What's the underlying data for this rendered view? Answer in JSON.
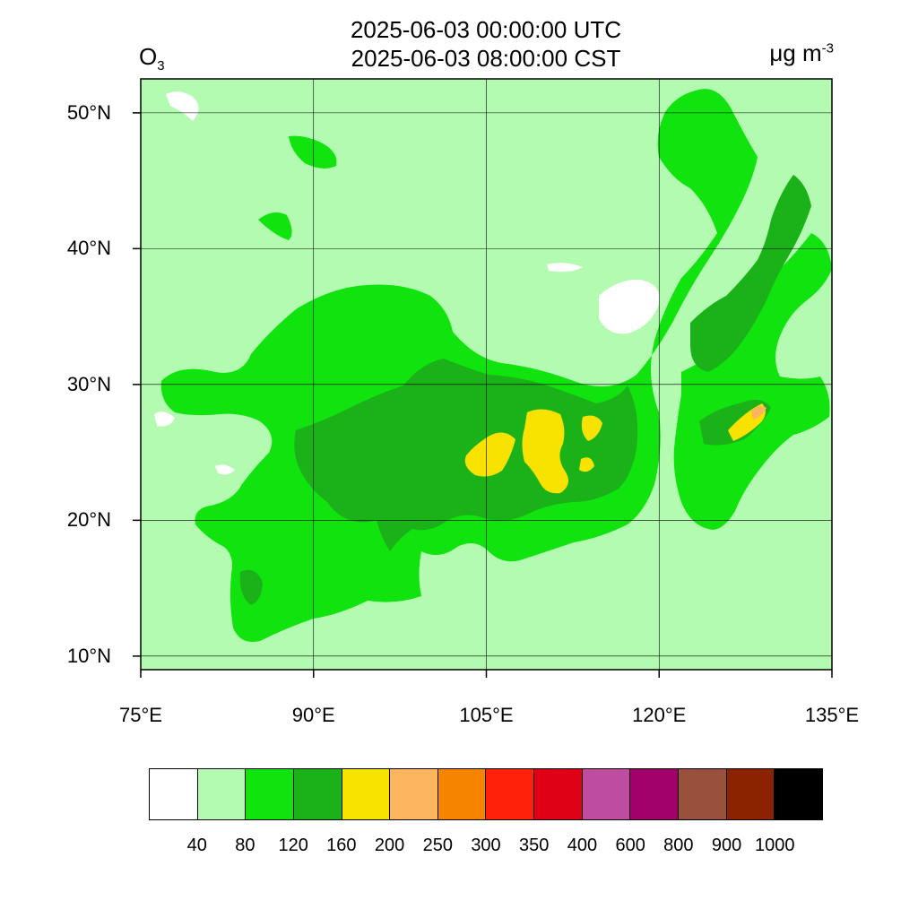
{
  "header": {
    "title_utc": "2025-06-03 00:00:00 UTC",
    "title_cst": "2025-06-03 08:00:00 CST",
    "variable": "O",
    "variable_sub": "3",
    "unit": "μg m",
    "unit_sup": "-3"
  },
  "map": {
    "lon_range": [
      75,
      135
    ],
    "lat_range": [
      9,
      52.5
    ],
    "lon_ticks": [
      {
        "value": 75,
        "label": "75°E"
      },
      {
        "value": 90,
        "label": "90°E"
      },
      {
        "value": 105,
        "label": "105°E"
      },
      {
        "value": 120,
        "label": "120°E"
      },
      {
        "value": 135,
        "label": "135°E"
      }
    ],
    "lat_ticks": [
      {
        "value": 10,
        "label": "10°N"
      },
      {
        "value": 20,
        "label": "20°N"
      },
      {
        "value": 30,
        "label": "30°N"
      },
      {
        "value": 40,
        "label": "40°N"
      },
      {
        "value": 50,
        "label": "50°N"
      }
    ],
    "gridlines": true
  },
  "colorbar": {
    "colors": [
      "#ffffff",
      "#b3fbb1",
      "#10e30e",
      "#1ab119",
      "#f7e200",
      "#fdb65f",
      "#f58500",
      "#ff2008",
      "#de0014",
      "#be4d9f",
      "#a1006b",
      "#99513e",
      "#8b2200",
      "#000000"
    ],
    "labels": [
      "40",
      "80",
      "120",
      "160",
      "200",
      "250",
      "300",
      "350",
      "400",
      "600",
      "800",
      "900",
      "1000"
    ]
  }
}
